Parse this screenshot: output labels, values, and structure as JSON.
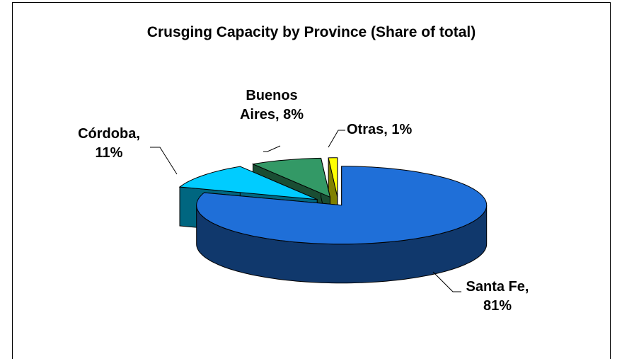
{
  "chart_data": {
    "type": "pie",
    "title": "Crusging Capacity by Province (Share of total)",
    "values": [
      81,
      11,
      8,
      1
    ],
    "value_labels": [
      "Santa Fe, 81%",
      "Córdoba, 11%",
      "Buenos Aires, 8%",
      "Otras, 1%"
    ],
    "colors": [
      "#1f6fd8",
      "#00ccff",
      "#339966",
      "#ffff00"
    ],
    "three_d": true,
    "exploded": true
  }
}
